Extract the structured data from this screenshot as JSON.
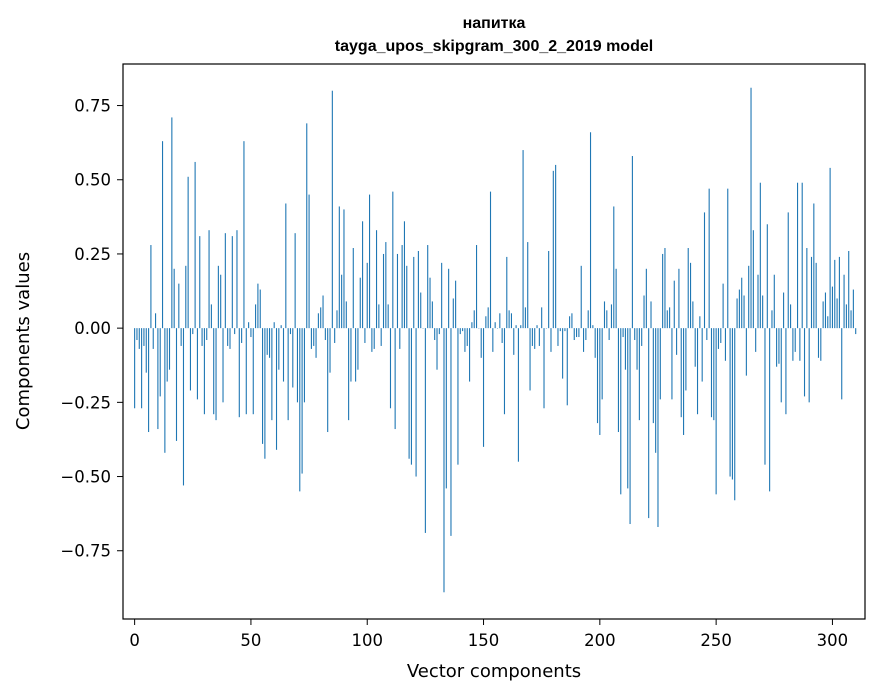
{
  "chart_data": {
    "type": "bar",
    "title": "напитка",
    "subtitle": "tayga_upos_skipgram_300_2_2019 model",
    "xlabel": "Vector components",
    "ylabel": "Components values",
    "xlim": [
      -5,
      314
    ],
    "ylim": [
      -0.98,
      0.89
    ],
    "xticks": [
      0,
      50,
      100,
      150,
      200,
      250,
      300
    ],
    "xtick_labels": [
      "0",
      "50",
      "100",
      "150",
      "200",
      "250",
      "300"
    ],
    "yticks": [
      -0.75,
      -0.5,
      -0.25,
      0.0,
      0.25,
      0.5,
      0.75
    ],
    "ytick_labels": [
      "−0.75",
      "−0.50",
      "−0.25",
      "0.00",
      "0.25",
      "0.50",
      "0.75"
    ],
    "grid": false,
    "bar_color": "#1f77b4",
    "values": [
      -0.27,
      -0.04,
      -0.07,
      -0.27,
      -0.06,
      -0.15,
      -0.35,
      0.28,
      -0.07,
      0.05,
      -0.34,
      -0.23,
      0.63,
      -0.42,
      -0.18,
      -0.14,
      0.71,
      0.2,
      -0.38,
      0.15,
      -0.06,
      -0.53,
      0.21,
      0.51,
      -0.21,
      -0.02,
      0.56,
      -0.24,
      0.31,
      -0.06,
      -0.29,
      -0.04,
      0.33,
      0.08,
      -0.29,
      -0.31,
      0.21,
      0.18,
      -0.25,
      0.32,
      -0.06,
      -0.07,
      0.31,
      -0.02,
      0.33,
      -0.3,
      -0.05,
      0.63,
      -0.29,
      0.02,
      -0.03,
      -0.29,
      0.08,
      0.15,
      0.13,
      -0.39,
      -0.44,
      -0.09,
      -0.1,
      -0.31,
      0.02,
      -0.41,
      -0.14,
      0.01,
      -0.18,
      0.42,
      -0.31,
      -0.02,
      -0.2,
      0.32,
      -0.25,
      -0.55,
      -0.49,
      -0.25,
      0.69,
      0.45,
      -0.07,
      -0.06,
      -0.1,
      0.05,
      0.07,
      0.11,
      -0.04,
      -0.35,
      -0.15,
      0.8,
      -0.05,
      0.06,
      0.41,
      0.18,
      0.4,
      0.09,
      -0.31,
      -0.18,
      0.27,
      -0.18,
      -0.14,
      0.17,
      0.36,
      -0.05,
      0.22,
      0.45,
      -0.08,
      -0.07,
      0.33,
      0.08,
      -0.06,
      0.25,
      0.29,
      0.08,
      -0.27,
      0.46,
      -0.34,
      0.25,
      -0.07,
      0.28,
      0.36,
      0.21,
      -0.44,
      -0.46,
      0.24,
      -0.5,
      0.26,
      0.12,
      0.0,
      -0.69,
      0.28,
      0.17,
      0.09,
      -0.04,
      -0.14,
      -0.02,
      0.22,
      -0.89,
      -0.54,
      0.2,
      -0.7,
      0.1,
      0.16,
      -0.46,
      -0.02,
      -0.01,
      -0.08,
      -0.06,
      -0.18,
      0.02,
      0.06,
      0.28,
      0.0,
      -0.1,
      -0.4,
      0.04,
      0.07,
      0.46,
      -0.08,
      0.02,
      0.0,
      0.05,
      -0.05,
      -0.29,
      0.24,
      0.06,
      0.05,
      -0.09,
      0.01,
      -0.45,
      0.01,
      0.6,
      0.07,
      0.29,
      -0.21,
      -0.06,
      -0.07,
      0.01,
      -0.06,
      0.07,
      -0.27,
      0.0,
      0.26,
      -0.08,
      0.53,
      0.55,
      -0.06,
      -0.01,
      -0.17,
      -0.01,
      -0.26,
      0.04,
      0.05,
      -0.04,
      -0.03,
      -0.03,
      0.21,
      -0.08,
      -0.04,
      0.06,
      0.66,
      0.01,
      -0.1,
      -0.32,
      -0.36,
      -0.24,
      0.09,
      0.06,
      -0.04,
      0.08,
      0.41,
      0.2,
      -0.35,
      -0.56,
      -0.03,
      -0.14,
      -0.54,
      -0.66,
      0.58,
      -0.04,
      -0.14,
      -0.31,
      -0.06,
      0.11,
      0.2,
      -0.64,
      0.09,
      -0.32,
      -0.42,
      -0.67,
      -0.24,
      0.25,
      0.27,
      0.06,
      0.07,
      -0.24,
      0.16,
      -0.09,
      0.2,
      -0.3,
      -0.36,
      -0.21,
      0.27,
      0.22,
      0.09,
      -0.13,
      -0.29,
      0.04,
      -0.18,
      0.39,
      -0.04,
      0.47,
      -0.3,
      -0.31,
      -0.56,
      -0.07,
      -0.05,
      0.15,
      -0.11,
      0.47,
      -0.5,
      -0.51,
      -0.58,
      0.1,
      0.13,
      0.17,
      0.11,
      -0.16,
      0.21,
      0.81,
      0.33,
      -0.08,
      0.18,
      0.49,
      0.11,
      -0.46,
      0.35,
      -0.55,
      0.06,
      0.18,
      -0.13,
      -0.12,
      -0.25,
      0.12,
      -0.29,
      0.39,
      0.08,
      -0.11,
      -0.08,
      0.49,
      -0.11,
      0.49,
      -0.23,
      0.27,
      -0.25,
      0.24,
      0.42,
      0.22,
      -0.1,
      -0.11,
      0.09,
      0.12,
      0.04,
      0.54,
      0.14,
      0.23,
      0.1,
      0.24,
      -0.24,
      0.18,
      0.08,
      0.26,
      0.06,
      0.13,
      -0.02
    ]
  }
}
